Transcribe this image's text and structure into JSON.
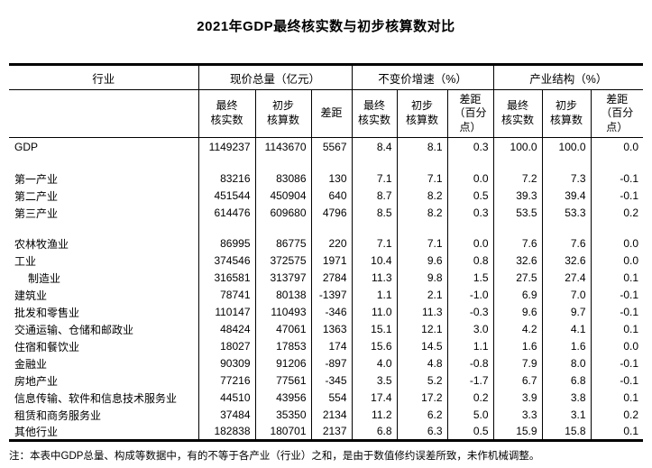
{
  "title": "2021年GDP最终核实数与初步核算数对比",
  "table": {
    "col_groups": [
      {
        "label": "行业"
      },
      {
        "label": "现价总量（亿元）"
      },
      {
        "label": "不变价增速（%）"
      },
      {
        "label": "产业结构（%）"
      }
    ],
    "sub_headers": [
      "最终\n核实数",
      "初步\n核算数",
      "差距",
      "最终\n核实数",
      "初步\n核算数",
      "差距\n（百分\n点）",
      "最终\n核实数",
      "初步\n核算数",
      "差距\n（百分\n点）"
    ],
    "rows": [
      {
        "industry": "GDP",
        "indent": false,
        "blank": false,
        "values": [
          "1149237",
          "1143670",
          "5567",
          "8.4",
          "8.1",
          "0.3",
          "100.0",
          "100.0",
          "0.0"
        ]
      },
      {
        "industry": "",
        "indent": false,
        "blank": true,
        "values": [
          "",
          "",
          "",
          "",
          "",
          "",
          "",
          "",
          ""
        ]
      },
      {
        "industry": "第一产业",
        "indent": false,
        "blank": false,
        "values": [
          "83216",
          "83086",
          "130",
          "7.1",
          "7.1",
          "0.0",
          "7.2",
          "7.3",
          "-0.1"
        ]
      },
      {
        "industry": "第二产业",
        "indent": false,
        "blank": false,
        "values": [
          "451544",
          "450904",
          "640",
          "8.7",
          "8.2",
          "0.5",
          "39.3",
          "39.4",
          "-0.1"
        ]
      },
      {
        "industry": "第三产业",
        "indent": false,
        "blank": false,
        "values": [
          "614476",
          "609680",
          "4796",
          "8.5",
          "8.2",
          "0.3",
          "53.5",
          "53.3",
          "0.2"
        ]
      },
      {
        "industry": "",
        "indent": false,
        "blank": true,
        "values": [
          "",
          "",
          "",
          "",
          "",
          "",
          "",
          "",
          ""
        ]
      },
      {
        "industry": "农林牧渔业",
        "indent": false,
        "blank": false,
        "values": [
          "86995",
          "86775",
          "220",
          "7.1",
          "7.1",
          "0.0",
          "7.6",
          "7.6",
          "0.0"
        ]
      },
      {
        "industry": "工业",
        "indent": false,
        "blank": false,
        "values": [
          "374546",
          "372575",
          "1971",
          "10.4",
          "9.6",
          "0.8",
          "32.6",
          "32.6",
          "0.0"
        ]
      },
      {
        "industry": "制造业",
        "indent": true,
        "blank": false,
        "values": [
          "316581",
          "313797",
          "2784",
          "11.3",
          "9.8",
          "1.5",
          "27.5",
          "27.4",
          "0.1"
        ]
      },
      {
        "industry": "建筑业",
        "indent": false,
        "blank": false,
        "values": [
          "78741",
          "80138",
          "-1397",
          "1.1",
          "2.1",
          "-1.0",
          "6.9",
          "7.0",
          "-0.1"
        ]
      },
      {
        "industry": "批发和零售业",
        "indent": false,
        "blank": false,
        "values": [
          "110147",
          "110493",
          "-346",
          "11.0",
          "11.3",
          "-0.3",
          "9.6",
          "9.7",
          "-0.1"
        ]
      },
      {
        "industry": "交通运输、仓储和邮政业",
        "indent": false,
        "blank": false,
        "values": [
          "48424",
          "47061",
          "1363",
          "15.1",
          "12.1",
          "3.0",
          "4.2",
          "4.1",
          "0.1"
        ]
      },
      {
        "industry": "住宿和餐饮业",
        "indent": false,
        "blank": false,
        "values": [
          "18027",
          "17853",
          "174",
          "15.6",
          "14.5",
          "1.1",
          "1.6",
          "1.6",
          "0.0"
        ]
      },
      {
        "industry": "金融业",
        "indent": false,
        "blank": false,
        "values": [
          "90309",
          "91206",
          "-897",
          "4.0",
          "4.8",
          "-0.8",
          "7.9",
          "8.0",
          "-0.1"
        ]
      },
      {
        "industry": "房地产业",
        "indent": false,
        "blank": false,
        "values": [
          "77216",
          "77561",
          "-345",
          "3.5",
          "5.2",
          "-1.7",
          "6.7",
          "6.8",
          "-0.1"
        ]
      },
      {
        "industry": "信息传输、软件和信息技术服务业",
        "indent": false,
        "blank": false,
        "values": [
          "44510",
          "43956",
          "554",
          "17.4",
          "17.2",
          "0.2",
          "3.9",
          "3.8",
          "0.1"
        ]
      },
      {
        "industry": "租赁和商务服务业",
        "indent": false,
        "blank": false,
        "values": [
          "37484",
          "35350",
          "2134",
          "11.2",
          "6.2",
          "5.0",
          "3.3",
          "3.1",
          "0.2"
        ]
      },
      {
        "industry": "其他行业",
        "indent": false,
        "blank": false,
        "values": [
          "182838",
          "180701",
          "2137",
          "6.8",
          "6.3",
          "0.5",
          "15.9",
          "15.8",
          "0.1"
        ]
      }
    ]
  },
  "footnote": "注：本表中GDP总量、构成等数据中，有的不等于各产业（行业）之和，是由于数值修约误差所致，未作机械调整。",
  "colors": {
    "text": "#000000",
    "border": "#000000",
    "background": "#ffffff"
  }
}
